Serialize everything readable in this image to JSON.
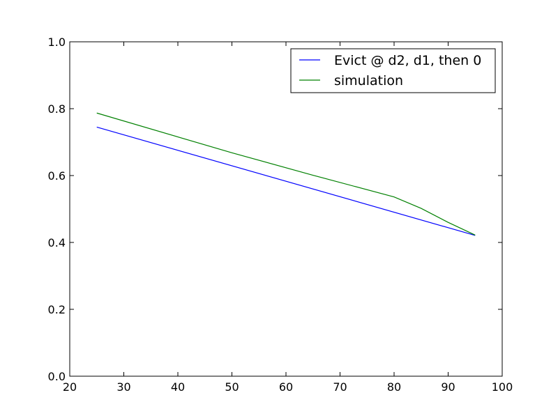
{
  "chart_data": {
    "type": "line",
    "xlim": [
      20,
      100
    ],
    "ylim": [
      0.0,
      1.0
    ],
    "xticks": [
      "20",
      "30",
      "40",
      "50",
      "60",
      "70",
      "80",
      "90",
      "100"
    ],
    "yticks": [
      "0.0",
      "0.2",
      "0.4",
      "0.6",
      "0.8",
      "1.0"
    ],
    "grid": false,
    "legend_position": "top-right",
    "series": [
      {
        "name": "Evict @ d2, d1, then 0",
        "color": "#0000ff",
        "x": [
          25,
          95
        ],
        "y": [
          0.745,
          0.421
        ]
      },
      {
        "name": "simulation",
        "color": "#008000",
        "x": [
          25,
          50,
          65,
          80,
          85,
          90,
          95
        ],
        "y": [
          0.787,
          0.668,
          0.601,
          0.536,
          0.502,
          0.46,
          0.422
        ]
      }
    ]
  }
}
